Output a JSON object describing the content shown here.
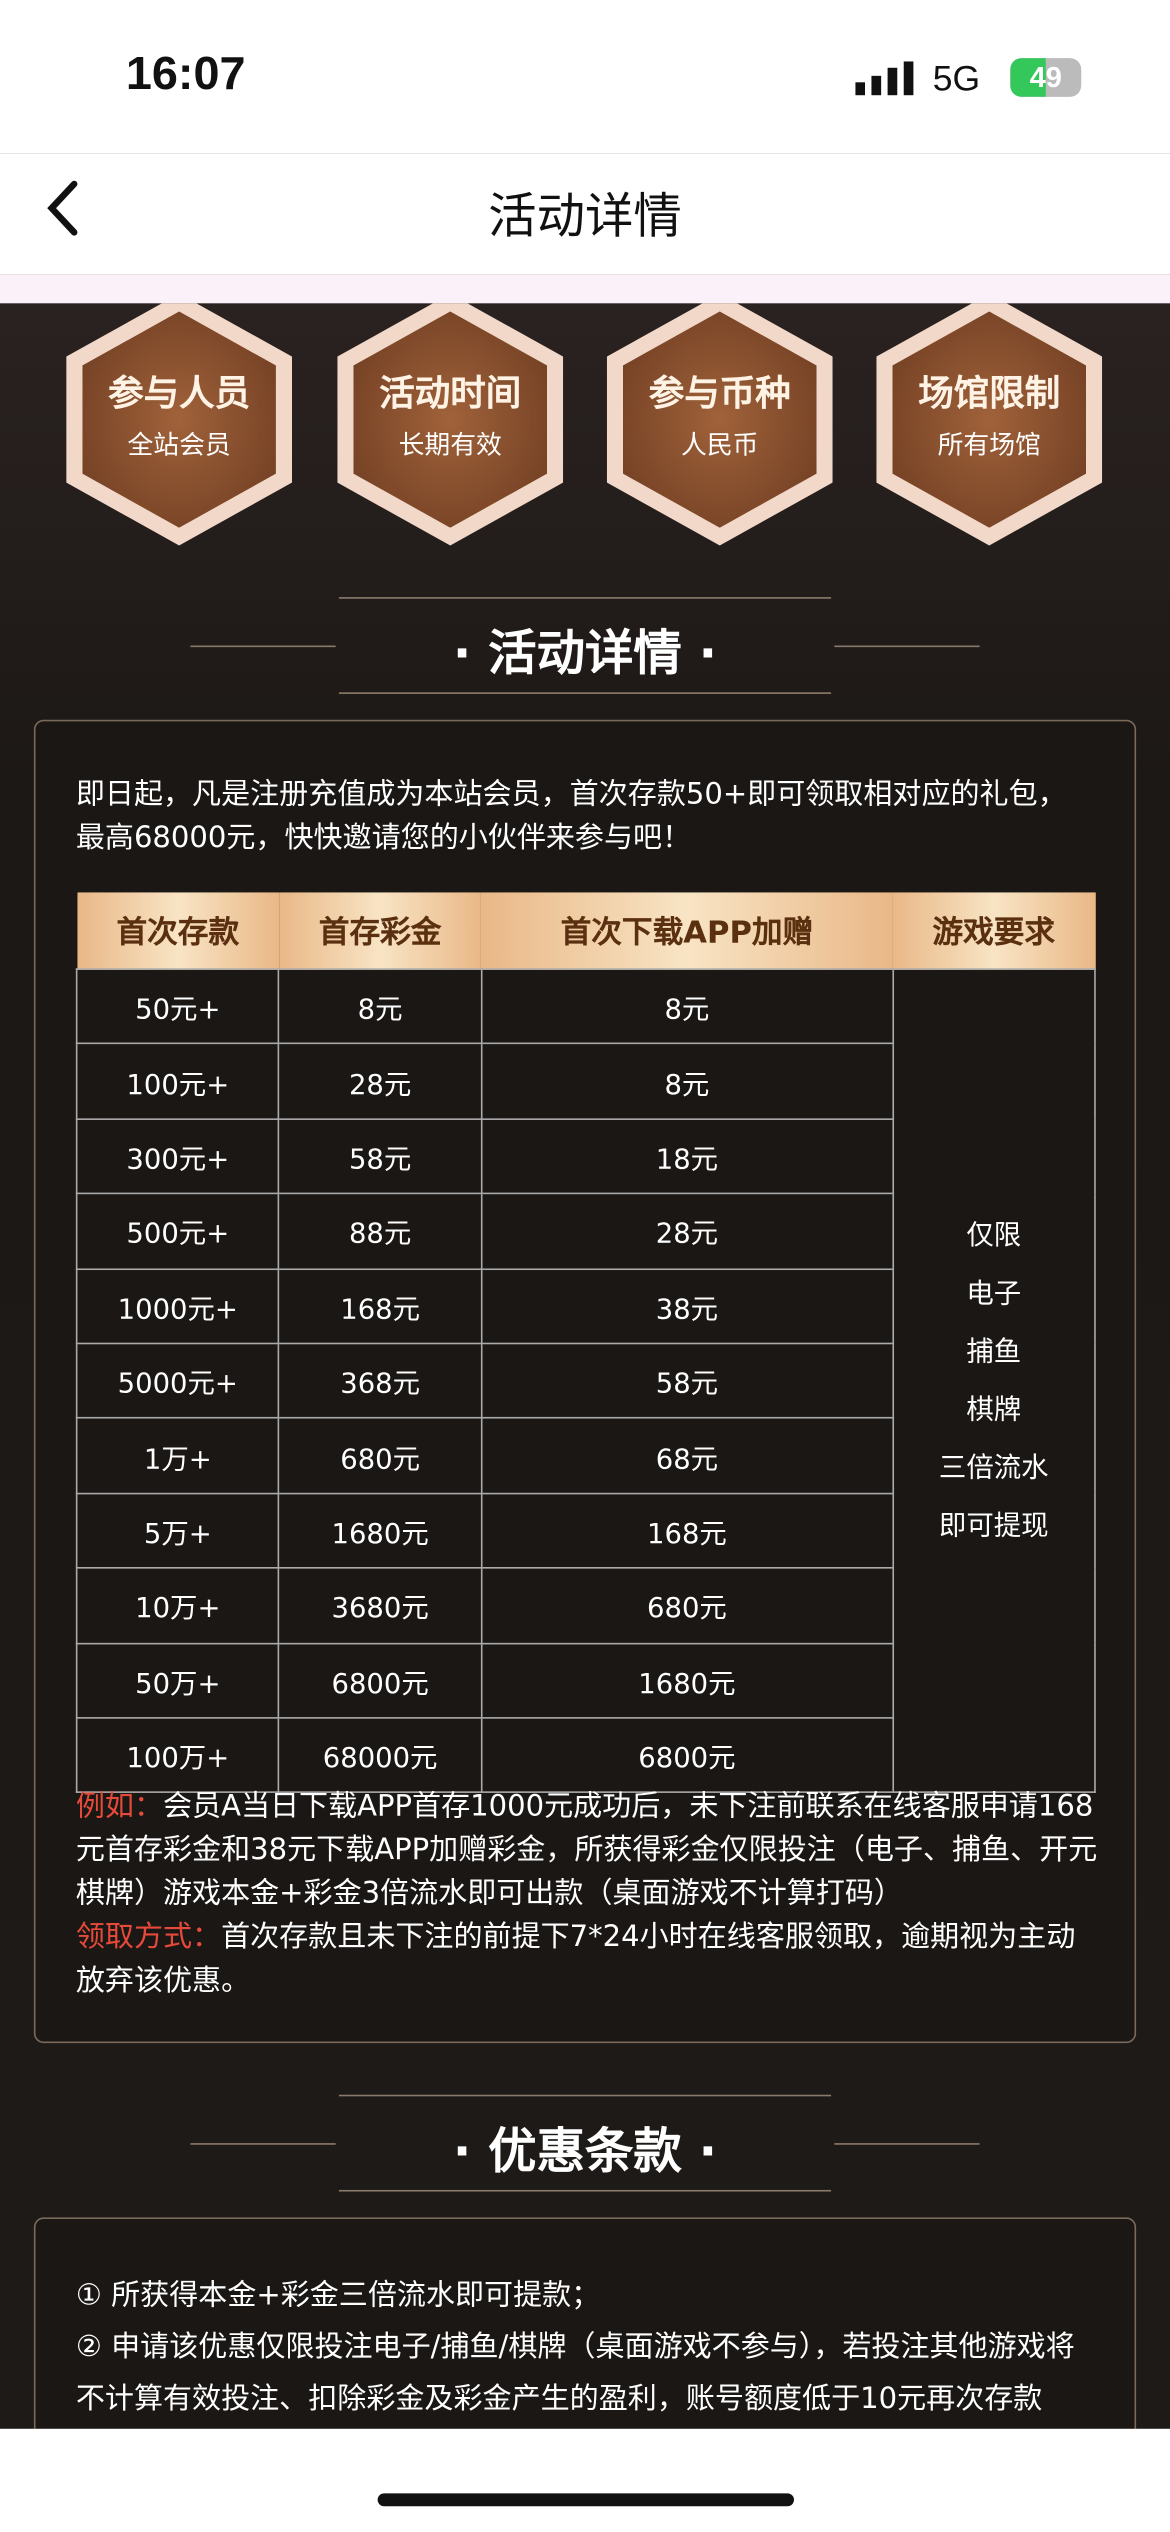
{
  "status_bar": {
    "time": "16:07",
    "network": "5G",
    "battery": "49"
  },
  "header": {
    "title": "活动详情"
  },
  "info_badges": [
    {
      "title": "参与人员",
      "text": "全站会员"
    },
    {
      "title": "活动时间",
      "text": "长期有效"
    },
    {
      "title": "参与币种",
      "text": "人民币"
    },
    {
      "title": "场馆限制",
      "text": "所有场馆"
    }
  ],
  "section_details": {
    "title": "· 活动详情 ·",
    "intro": "即日起，凡是注册充值成为本站会员，首次存款50+即可领取相对应的礼包，最高68000元，快快邀请您的小伙伴来参与吧！",
    "table": {
      "headers": [
        "首次存款",
        "首存彩金",
        "首次下载APP加赠",
        "游戏要求"
      ],
      "rows": [
        [
          "50元+",
          "8元",
          "8元"
        ],
        [
          "100元+",
          "28元",
          "8元"
        ],
        [
          "300元+",
          "58元",
          "18元"
        ],
        [
          "500元+",
          "88元",
          "28元"
        ],
        [
          "1000元+",
          "168元",
          "38元"
        ],
        [
          "5000元+",
          "368元",
          "58元"
        ],
        [
          "1万+",
          "680元",
          "68元"
        ],
        [
          "5万+",
          "1680元",
          "168元"
        ],
        [
          "10万+",
          "3680元",
          "680元"
        ],
        [
          "50万+",
          "6800元",
          "1680元"
        ],
        [
          "100万+",
          "68000元",
          "6800元"
        ]
      ],
      "requirement": [
        "仅限",
        "电子",
        "捕鱼",
        "棋牌",
        "三倍流水",
        "即可提现"
      ]
    },
    "example_label": "例如：",
    "example_text": "会员A当日下载APP首存1000元成功后，未下注前联系在线客服申请168元首存彩金和38元下载APP加赠彩金，所获得彩金仅限投注（电子、捕鱼、开元棋牌）游戏本金+彩金3倍流水即可出款（桌面游戏不计算打码）",
    "claim_label": "领取方式：",
    "claim_text": "首次存款且未下注的前提下7*24小时在线客服领取，逾期视为主动放弃该优惠。"
  },
  "section_terms": {
    "title": "· 优惠条款 ·",
    "items": [
      "① 所获得本金+彩金三倍流水即可提款；",
      "② 申请该优惠仅限投注电子/捕鱼/棋牌（桌面游戏不参与），若投注其他游戏将不计算有效投注、扣除彩金及彩金产生的盈利，账号额度低于10元再次存款"
    ]
  }
}
